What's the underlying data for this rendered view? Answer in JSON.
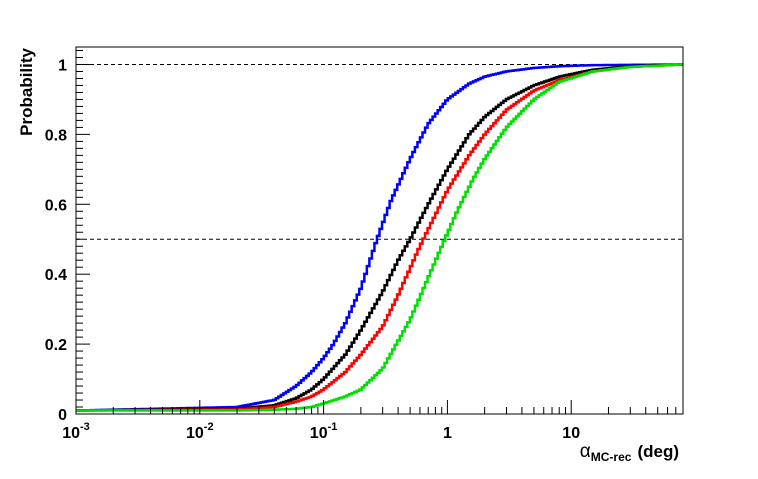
{
  "chart_data": {
    "type": "line",
    "xscale": "log",
    "xlim": [
      0.001,
      80
    ],
    "ylim": [
      0,
      1.05
    ],
    "xlabel_main": "α",
    "xlabel_sub": "MC-rec",
    "xlabel_unit": "(deg)",
    "ylabel": "Probability",
    "x_ticks": [
      {
        "value": 0.001,
        "base": "10",
        "exp": "-3"
      },
      {
        "value": 0.01,
        "base": "10",
        "exp": "-2"
      },
      {
        "value": 0.1,
        "base": "10",
        "exp": "-1"
      },
      {
        "value": 1,
        "base": "1",
        "exp": ""
      },
      {
        "value": 10,
        "base": "10",
        "exp": ""
      }
    ],
    "y_ticks": [
      {
        "value": 0,
        "label": "0"
      },
      {
        "value": 0.2,
        "label": "0.2"
      },
      {
        "value": 0.4,
        "label": "0.4"
      },
      {
        "value": 0.6,
        "label": "0.6"
      },
      {
        "value": 0.8,
        "label": "0.8"
      },
      {
        "value": 1.0,
        "label": "1"
      }
    ],
    "reference_lines": [
      1.0,
      0.5
    ],
    "grid": false,
    "legend": "none",
    "series": [
      {
        "color": "#0000ff",
        "x": [
          0.001,
          0.02,
          0.04,
          0.06,
          0.08,
          0.1,
          0.12,
          0.15,
          0.2,
          0.27,
          0.35,
          0.5,
          0.7,
          1,
          1.5,
          2,
          3,
          5,
          8,
          15,
          30,
          80
        ],
        "y": [
          0.01,
          0.02,
          0.04,
          0.08,
          0.12,
          0.16,
          0.2,
          0.26,
          0.36,
          0.5,
          0.61,
          0.73,
          0.83,
          0.9,
          0.945,
          0.965,
          0.98,
          0.99,
          0.995,
          0.998,
          0.999,
          1.0
        ]
      },
      {
        "color": "#000000",
        "x": [
          0.001,
          0.02,
          0.04,
          0.06,
          0.08,
          0.1,
          0.15,
          0.2,
          0.3,
          0.4,
          0.5,
          0.7,
          1,
          1.5,
          2,
          3,
          5,
          8,
          15,
          30,
          80
        ],
        "y": [
          0.01,
          0.015,
          0.025,
          0.045,
          0.07,
          0.1,
          0.17,
          0.24,
          0.35,
          0.44,
          0.5,
          0.6,
          0.7,
          0.8,
          0.85,
          0.9,
          0.94,
          0.965,
          0.985,
          0.995,
          1.0
        ]
      },
      {
        "color": "#ff0000",
        "x": [
          0.001,
          0.02,
          0.04,
          0.06,
          0.08,
          0.1,
          0.15,
          0.2,
          0.3,
          0.4,
          0.6,
          0.8,
          1,
          1.5,
          2,
          3,
          5,
          8,
          15,
          30,
          80
        ],
        "y": [
          0.01,
          0.013,
          0.02,
          0.035,
          0.05,
          0.07,
          0.12,
          0.17,
          0.25,
          0.34,
          0.48,
          0.57,
          0.64,
          0.74,
          0.8,
          0.87,
          0.925,
          0.955,
          0.98,
          0.993,
          1.0
        ]
      },
      {
        "color": "#00e000",
        "x": [
          0.001,
          0.02,
          0.04,
          0.06,
          0.08,
          0.1,
          0.15,
          0.2,
          0.3,
          0.5,
          0.7,
          0.9,
          1.2,
          1.6,
          2,
          3,
          5,
          8,
          15,
          30,
          80
        ],
        "y": [
          0.01,
          0.01,
          0.012,
          0.015,
          0.02,
          0.03,
          0.05,
          0.07,
          0.13,
          0.27,
          0.39,
          0.48,
          0.58,
          0.67,
          0.73,
          0.82,
          0.9,
          0.95,
          0.98,
          0.993,
          1.0
        ]
      }
    ]
  }
}
